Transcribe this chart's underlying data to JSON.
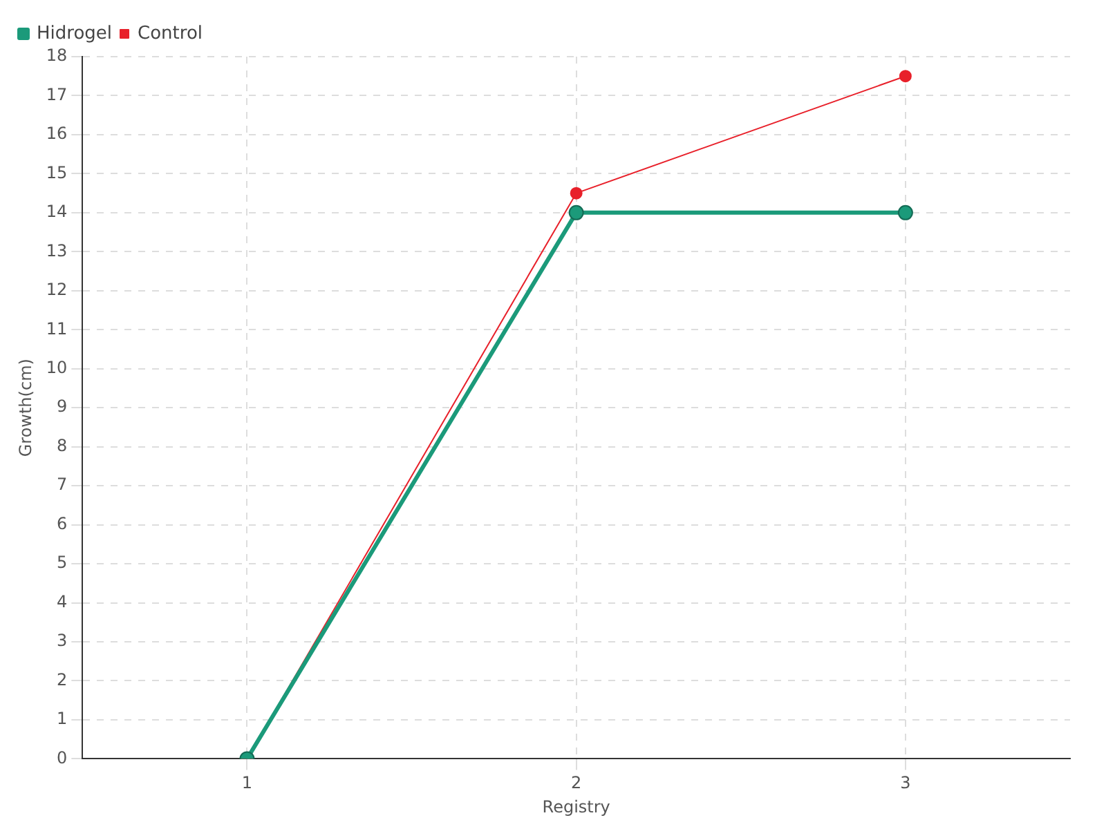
{
  "chart_data": {
    "type": "line",
    "xlabel": "Registry",
    "ylabel": "Growth(cm)",
    "categories": [
      "1",
      "2",
      "3"
    ],
    "series": [
      {
        "name": "Hidrogel",
        "color": "#1b9a7a",
        "values": [
          0,
          14,
          14
        ]
      },
      {
        "name": "Control",
        "color": "#e8202a",
        "values": [
          0,
          14.5,
          17.5
        ]
      }
    ],
    "ylim": [
      0,
      18
    ],
    "yticks": [
      0,
      1,
      2,
      3,
      4,
      5,
      6,
      7,
      8,
      9,
      10,
      11,
      12,
      13,
      14,
      15,
      16,
      17,
      18
    ],
    "grid": true,
    "legend": "top left",
    "marker": "circle"
  }
}
